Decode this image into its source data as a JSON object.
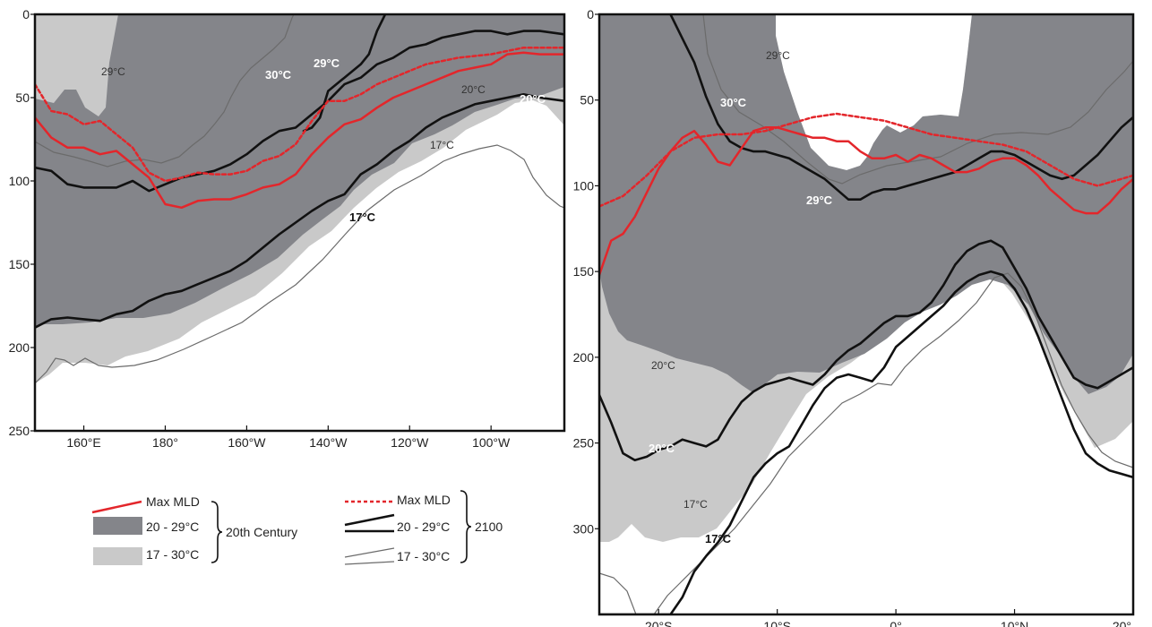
{
  "colors": {
    "dark_band": "#84858a",
    "light_band": "#c9c9c9",
    "mld_red": "#e3262b",
    "contour_2100": "#111111",
    "contour_2100_thin": "#6b6b6b"
  },
  "chart_data": [
    {
      "type": "area",
      "title": "",
      "xlabel": "",
      "ylabel": "",
      "x_ticks": [
        "160°E",
        "180°",
        "160°W",
        "140°W",
        "120°W",
        "100°W"
      ],
      "x_tick_values": [
        160,
        180,
        200,
        220,
        240,
        260
      ],
      "xlim": [
        148,
        278
      ],
      "y_ticks": [
        "0",
        "50",
        "100",
        "150",
        "200",
        "250"
      ],
      "y_tick_values": [
        0,
        50,
        100,
        150,
        200,
        250
      ],
      "ylim": [
        0,
        250
      ],
      "y_inverted": true,
      "series": [
        {
          "name": "Max MLD (20th Century)",
          "x": [
            148,
            152,
            156,
            160,
            164,
            168,
            172,
            176,
            180,
            184,
            188,
            192,
            196,
            200,
            204,
            208,
            212,
            216,
            220,
            224,
            228,
            232,
            236,
            240,
            244,
            248,
            252,
            256,
            260,
            264,
            268,
            272,
            278
          ],
          "y": [
            62,
            74,
            80,
            80,
            84,
            82,
            90,
            98,
            114,
            116,
            112,
            111,
            111,
            108,
            104,
            102,
            96,
            84,
            74,
            66,
            63,
            56,
            50,
            46,
            42,
            38,
            34,
            32,
            30,
            24,
            23,
            24,
            24
          ]
        },
        {
          "name": "Max MLD (2100)",
          "x": [
            148,
            152,
            156,
            160,
            164,
            168,
            172,
            176,
            180,
            184,
            188,
            192,
            196,
            200,
            204,
            208,
            212,
            216,
            220,
            224,
            228,
            232,
            236,
            240,
            244,
            248,
            252,
            256,
            260,
            264,
            268,
            272,
            278
          ],
          "y": [
            42,
            58,
            60,
            66,
            64,
            72,
            80,
            95,
            100,
            98,
            95,
            96,
            96,
            94,
            88,
            85,
            78,
            64,
            52,
            52,
            48,
            42,
            38,
            34,
            30,
            28,
            26,
            25,
            24,
            22,
            20,
            20,
            20
          ]
        },
        {
          "name": "20°C (2100)",
          "x": [
            148,
            152,
            156,
            160,
            164,
            168,
            172,
            176,
            180,
            184,
            188,
            192,
            196,
            200,
            204,
            208,
            212,
            216,
            220,
            224,
            228,
            232,
            236,
            240,
            244,
            248,
            252,
            256,
            260,
            264,
            268,
            272,
            278
          ],
          "y": [
            92,
            94,
            102,
            104,
            104,
            104,
            100,
            106,
            102,
            98,
            96,
            94,
            90,
            84,
            76,
            70,
            68,
            60,
            52,
            42,
            38,
            30,
            26,
            20,
            18,
            14,
            12,
            10,
            10,
            12,
            10,
            10,
            12
          ]
        },
        {
          "name": "17°C (2100)",
          "x": [
            148,
            152,
            156,
            160,
            164,
            168,
            172,
            176,
            180,
            184,
            188,
            192,
            196,
            200,
            204,
            208,
            212,
            216,
            220,
            224,
            228,
            232,
            236,
            240,
            244,
            248,
            252,
            256,
            260,
            264,
            268,
            272,
            278
          ],
          "y": [
            188,
            183,
            182,
            183,
            184,
            180,
            178,
            172,
            168,
            166,
            162,
            158,
            154,
            148,
            140,
            132,
            125,
            118,
            112,
            108,
            96,
            90,
            82,
            76,
            68,
            62,
            58,
            54,
            52,
            50,
            48,
            50,
            52
          ]
        },
        {
          "name": "30°C (2100)",
          "x": [
            214,
            216,
            218,
            220,
            222,
            224,
            226,
            228,
            230,
            232,
            234
          ],
          "y": [
            70,
            68,
            62,
            46,
            42,
            38,
            34,
            30,
            24,
            10,
            0
          ]
        }
      ],
      "annotations": [
        "29°C",
        "30°C",
        "29°C",
        "20°C",
        "20°C",
        "17°C",
        "17°C"
      ]
    },
    {
      "type": "area",
      "title": "",
      "xlabel": "",
      "ylabel": "",
      "x_ticks": [
        "20°S",
        "10°S",
        "0°",
        "10°N",
        "20°"
      ],
      "x_tick_values": [
        -20,
        -10,
        0,
        10,
        20
      ],
      "xlim": [
        -25,
        20
      ],
      "y_ticks": [
        "0",
        "50",
        "100",
        "150",
        "200",
        "250",
        "300"
      ],
      "y_tick_values": [
        0,
        50,
        100,
        150,
        200,
        250,
        300
      ],
      "ylim": [
        0,
        350
      ],
      "y_inverted": true,
      "series": [
        {
          "name": "Max MLD (20th Century)",
          "x": [
            -25,
            -24,
            -23,
            -22,
            -21,
            -20,
            -19,
            -18,
            -17,
            -16,
            -15,
            -14,
            -13,
            -12,
            -11,
            -10,
            -9,
            -8,
            -7,
            -6,
            -5,
            -4,
            -3,
            -2,
            -1,
            0,
            1,
            2,
            3,
            4,
            5,
            6,
            7,
            8,
            9,
            10,
            11,
            12,
            13,
            14,
            15,
            16,
            17,
            18,
            19,
            20
          ],
          "y": [
            152,
            132,
            128,
            118,
            104,
            90,
            80,
            72,
            68,
            76,
            86,
            88,
            78,
            68,
            66,
            66,
            68,
            70,
            72,
            72,
            74,
            74,
            80,
            84,
            84,
            82,
            86,
            82,
            84,
            88,
            92,
            92,
            90,
            86,
            84,
            84,
            88,
            94,
            102,
            108,
            114,
            116,
            116,
            110,
            102,
            96
          ]
        },
        {
          "name": "Max MLD (2100)",
          "x": [
            -25,
            -23,
            -21,
            -19,
            -17,
            -15,
            -13,
            -11,
            -9,
            -7,
            -5,
            -3,
            -1,
            1,
            3,
            5,
            7,
            9,
            11,
            13,
            15,
            17,
            19,
            20
          ],
          "y": [
            112,
            106,
            94,
            80,
            72,
            70,
            70,
            68,
            64,
            60,
            58,
            60,
            62,
            66,
            70,
            72,
            74,
            76,
            80,
            88,
            96,
            100,
            96,
            94
          ]
        },
        {
          "name": "20°C (2100)",
          "x": [
            -25,
            -24,
            -23,
            -22,
            -21,
            -20,
            -19,
            -18,
            -17,
            -16,
            -15,
            -14,
            -13,
            -12,
            -11,
            -10,
            -9,
            -8,
            -7,
            -6,
            -5,
            -4,
            -3,
            -2,
            -1,
            0,
            1,
            2,
            3,
            4,
            5,
            6,
            7,
            8,
            9,
            10,
            11,
            12,
            13,
            14,
            15,
            16,
            17,
            18,
            19,
            20
          ],
          "y": [
            222,
            238,
            256,
            260,
            258,
            254,
            252,
            248,
            250,
            252,
            248,
            236,
            226,
            220,
            216,
            214,
            212,
            214,
            216,
            210,
            202,
            196,
            192,
            186,
            180,
            176,
            176,
            174,
            168,
            158,
            146,
            138,
            134,
            132,
            136,
            148,
            160,
            176,
            188,
            200,
            212,
            216,
            218,
            214,
            210,
            206
          ]
        },
        {
          "name": "30°C (2100)",
          "x": [
            -19,
            -18,
            -17,
            -16,
            -15,
            -14,
            -13,
            -12,
            -11,
            -10,
            -9,
            -8,
            -7,
            -6,
            -5,
            -4,
            -3,
            -2,
            -1,
            0,
            1,
            2,
            3,
            4,
            5,
            6,
            7,
            8,
            9,
            10,
            11,
            12,
            13,
            14,
            15,
            16,
            17,
            18,
            19,
            20
          ],
          "y": [
            0,
            14,
            28,
            48,
            64,
            74,
            78,
            80,
            80,
            82,
            84,
            88,
            92,
            96,
            102,
            108,
            108,
            104,
            102,
            102,
            100,
            98,
            96,
            94,
            92,
            88,
            84,
            80,
            80,
            82,
            86,
            90,
            94,
            96,
            94,
            88,
            82,
            74,
            66,
            60
          ]
        },
        {
          "name": "17°C (2100)",
          "x": [
            -25,
            -24,
            -23,
            -22,
            -21,
            -20,
            -19,
            -18,
            -17,
            -16,
            -15,
            -14,
            -13,
            -12,
            -11,
            -10,
            -9,
            -8,
            -7,
            -6,
            -5,
            -4,
            -3,
            -2,
            -1,
            0,
            1,
            2,
            3,
            4,
            5,
            6,
            7,
            8,
            9,
            10,
            11,
            12,
            13,
            14,
            15,
            16,
            17,
            18,
            19,
            20
          ],
          "y": [
            350,
            350,
            350,
            350,
            350,
            350,
            350,
            340,
            325,
            316,
            308,
            298,
            284,
            270,
            262,
            256,
            252,
            240,
            228,
            218,
            212,
            210,
            212,
            214,
            206,
            194,
            188,
            182,
            176,
            170,
            162,
            156,
            152,
            150,
            152,
            160,
            172,
            188,
            206,
            224,
            242,
            256,
            262,
            266,
            268,
            270
          ]
        }
      ],
      "annotations": [
        "29°C",
        "30°C",
        "29°C",
        "20°C",
        "20°C",
        "17°C",
        "17°C"
      ]
    }
  ],
  "legend": {
    "cent20": {
      "max_mld": "Max MLD",
      "dark_range": "20 - 29°C",
      "light_range": "17 - 30°C",
      "group_label": "20th Century"
    },
    "y2100": {
      "max_mld": "Max MLD",
      "range_thick": "20 - 29°C",
      "range_thin": "17 - 30°C",
      "group_label": "2100"
    }
  }
}
